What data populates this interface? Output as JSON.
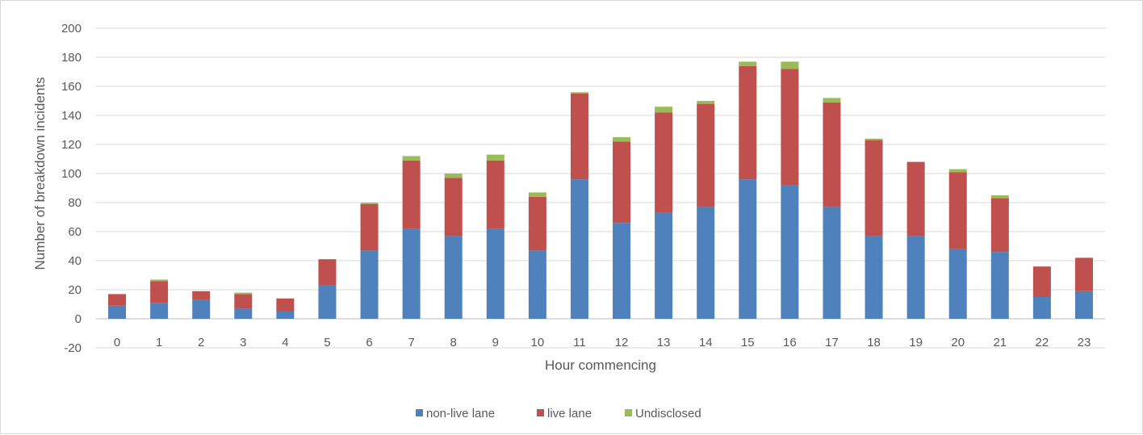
{
  "chart_data": {
    "type": "bar",
    "stacked": true,
    "categories": [
      "0",
      "1",
      "2",
      "3",
      "4",
      "5",
      "6",
      "7",
      "8",
      "9",
      "10",
      "11",
      "12",
      "13",
      "14",
      "15",
      "16",
      "17",
      "18",
      "19",
      "20",
      "21",
      "22",
      "23"
    ],
    "series": [
      {
        "name": "non-live lane",
        "color": "#4f81bd",
        "values": [
          9,
          11,
          13,
          7,
          5,
          23,
          47,
          62,
          57,
          62,
          47,
          96,
          66,
          73,
          77,
          96,
          92,
          77,
          57,
          57,
          48,
          46,
          15,
          19
        ]
      },
      {
        "name": "live lane",
        "color": "#c0504d",
        "values": [
          8,
          15,
          6,
          10,
          9,
          18,
          32,
          47,
          40,
          47,
          37,
          59,
          56,
          69,
          71,
          78,
          80,
          72,
          66,
          51,
          53,
          37,
          21,
          23
        ]
      },
      {
        "name": "Undisclosed",
        "color": "#9bbb59",
        "values": [
          0,
          1,
          0,
          1,
          0,
          0,
          1,
          3,
          3,
          4,
          3,
          1,
          3,
          4,
          2,
          3,
          5,
          3,
          1,
          0,
          2,
          2,
          0,
          0
        ]
      }
    ],
    "xlabel": "Hour commencing",
    "ylabel": "Number of breakdown incidents",
    "ylim": [
      -20,
      200
    ],
    "yticks": [
      -20,
      0,
      20,
      40,
      60,
      80,
      100,
      120,
      140,
      160,
      180,
      200
    ],
    "grid": true,
    "legend": "bottom"
  }
}
